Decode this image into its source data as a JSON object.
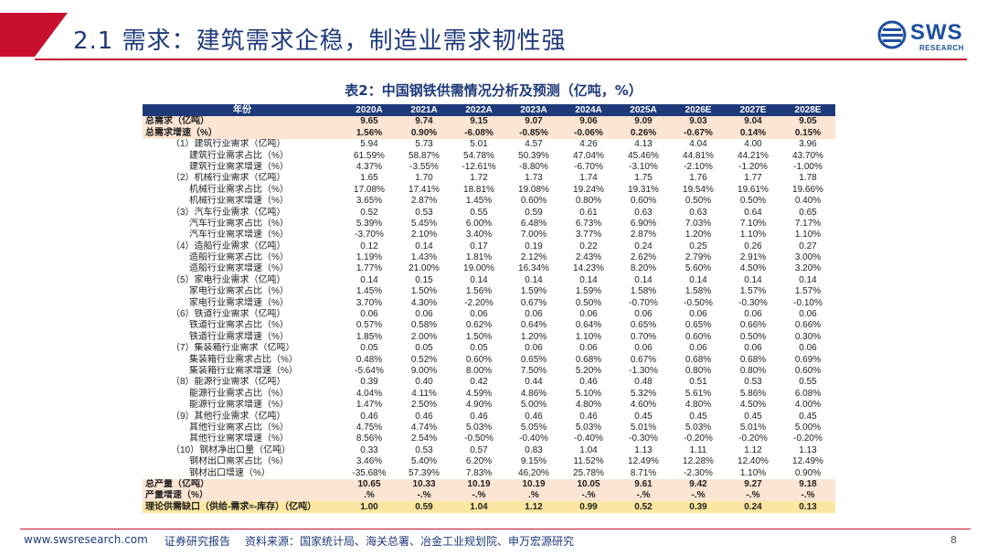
{
  "header": {
    "title": "2.1 需求：建筑需求企稳，制造业需求韧性强",
    "logo_text": "SWS",
    "logo_sub": "RESEARCH"
  },
  "table": {
    "title": "表2：中国钢铁供需情况分析及预测（亿吨，%）",
    "columns": [
      "年份",
      "2020A",
      "2021A",
      "2022A",
      "2023A",
      "2024A",
      "2025A",
      "2026E",
      "2027E",
      "2028E"
    ],
    "rows": [
      {
        "label": "总需求（亿吨）",
        "style": "bold",
        "indent": 0,
        "values": [
          "9.65",
          "9.74",
          "9.15",
          "9.07",
          "9.06",
          "9.09",
          "9.03",
          "9.04",
          "9.05"
        ]
      },
      {
        "label": "总需求增速（%）",
        "style": "bold",
        "indent": 0,
        "values": [
          "1.56%",
          "0.90%",
          "-6.08%",
          "-0.85%",
          "-0.06%",
          "0.26%",
          "-0.67%",
          "0.14%",
          "0.15%"
        ]
      },
      {
        "label": "（1）建筑行业需求（亿吨）",
        "style": "",
        "indent": 1,
        "values": [
          "5.94",
          "5.73",
          "5.01",
          "4.57",
          "4.26",
          "4.13",
          "4.04",
          "4.00",
          "3.96"
        ]
      },
      {
        "label": "建筑行业需求占比（%）",
        "style": "",
        "indent": 2,
        "values": [
          "61.59%",
          "58.87%",
          "54.78%",
          "50.39%",
          "47.04%",
          "45.46%",
          "44.81%",
          "44.21%",
          "43.70%"
        ]
      },
      {
        "label": "建筑行业需求增速（%）",
        "style": "",
        "indent": 2,
        "values": [
          "4.37%",
          "-3.55%",
          "-12.61%",
          "-8.80%",
          "-6.70%",
          "-3.10%",
          "-2.10%",
          "-1.20%",
          "-1.00%"
        ]
      },
      {
        "label": "（2）机械行业需求（亿吨）",
        "style": "",
        "indent": 1,
        "values": [
          "1.65",
          "1.70",
          "1.72",
          "1.73",
          "1.74",
          "1.75",
          "1.76",
          "1.77",
          "1.78"
        ]
      },
      {
        "label": "机械行业需求占比（%）",
        "style": "",
        "indent": 2,
        "values": [
          "17.08%",
          "17.41%",
          "18.81%",
          "19.08%",
          "19.24%",
          "19.31%",
          "19.54%",
          "19.61%",
          "19.66%"
        ]
      },
      {
        "label": "机械行业需求增速（%）",
        "style": "",
        "indent": 2,
        "values": [
          "3.65%",
          "2.87%",
          "1.45%",
          "0.60%",
          "0.80%",
          "0.60%",
          "0.50%",
          "0.50%",
          "0.40%"
        ]
      },
      {
        "label": "（3）汽车行业需求（亿吨）",
        "style": "",
        "indent": 1,
        "values": [
          "0.52",
          "0.53",
          "0.55",
          "0.59",
          "0.61",
          "0.63",
          "0.63",
          "0.64",
          "0.65"
        ]
      },
      {
        "label": "汽车行业需求占比（%）",
        "style": "",
        "indent": 2,
        "values": [
          "5.39%",
          "5.45%",
          "6.00%",
          "6.48%",
          "6.73%",
          "6.90%",
          "7.03%",
          "7.10%",
          "7.17%"
        ]
      },
      {
        "label": "汽车行业需求增速（%）",
        "style": "",
        "indent": 2,
        "values": [
          "-3.70%",
          "2.10%",
          "3.40%",
          "7.00%",
          "3.77%",
          "2.87%",
          "1.20%",
          "1.10%",
          "1.10%"
        ]
      },
      {
        "label": "（4）造船行业需求（亿吨）",
        "style": "",
        "indent": 1,
        "values": [
          "0.12",
          "0.14",
          "0.17",
          "0.19",
          "0.22",
          "0.24",
          "0.25",
          "0.26",
          "0.27"
        ]
      },
      {
        "label": "造船行业需求占比（%）",
        "style": "",
        "indent": 2,
        "values": [
          "1.19%",
          "1.43%",
          "1.81%",
          "2.12%",
          "2.43%",
          "2.62%",
          "2.79%",
          "2.91%",
          "3.00%"
        ]
      },
      {
        "label": "造船行业需求增速（%）",
        "style": "",
        "indent": 2,
        "values": [
          "1.77%",
          "21.00%",
          "19.00%",
          "16.34%",
          "14.23%",
          "8.20%",
          "5.60%",
          "4.50%",
          "3.20%"
        ]
      },
      {
        "label": "（5）家电行业需求（亿吨）",
        "style": "",
        "indent": 1,
        "values": [
          "0.14",
          "0.15",
          "0.14",
          "0.14",
          "0.14",
          "0.14",
          "0.14",
          "0.14",
          "0.14"
        ]
      },
      {
        "label": "家电行业需求占比（%）",
        "style": "",
        "indent": 2,
        "values": [
          "1.45%",
          "1.50%",
          "1.56%",
          "1.59%",
          "1.59%",
          "1.58%",
          "1.58%",
          "1.57%",
          "1.57%"
        ]
      },
      {
        "label": "家电行业需求增速（%）",
        "style": "",
        "indent": 2,
        "values": [
          "3.70%",
          "4.30%",
          "-2.20%",
          "0.67%",
          "0.50%",
          "-0.70%",
          "-0.50%",
          "-0.30%",
          "-0.10%"
        ]
      },
      {
        "label": "（6）铁道行业需求（亿吨）",
        "style": "",
        "indent": 1,
        "values": [
          "0.06",
          "0.06",
          "0.06",
          "0.06",
          "0.06",
          "0.06",
          "0.06",
          "0.06",
          "0.06"
        ]
      },
      {
        "label": "铁道行业需求占比（%）",
        "style": "",
        "indent": 2,
        "values": [
          "0.57%",
          "0.58%",
          "0.62%",
          "0.64%",
          "0.64%",
          "0.65%",
          "0.65%",
          "0.66%",
          "0.66%"
        ]
      },
      {
        "label": "铁道行业需求增速（%）",
        "style": "",
        "indent": 2,
        "values": [
          "1.85%",
          "2.00%",
          "1.50%",
          "1.20%",
          "1.10%",
          "0.70%",
          "0.60%",
          "0.50%",
          "0.30%"
        ]
      },
      {
        "label": "（7）集装箱行业需求（亿吨）",
        "style": "",
        "indent": 1,
        "values": [
          "0.05",
          "0.05",
          "0.05",
          "0.06",
          "0.06",
          "0.06",
          "0.06",
          "0.06",
          "0.06"
        ]
      },
      {
        "label": "集装箱行业需求占比（%）",
        "style": "",
        "indent": 2,
        "values": [
          "0.48%",
          "0.52%",
          "0.60%",
          "0.65%",
          "0.68%",
          "0.67%",
          "0.68%",
          "0.68%",
          "0.69%"
        ]
      },
      {
        "label": "集装箱行业需求增速（%）",
        "style": "",
        "indent": 2,
        "values": [
          "-5.64%",
          "9.00%",
          "8.00%",
          "7.50%",
          "5.20%",
          "-1.30%",
          "0.80%",
          "0.80%",
          "0.60%"
        ]
      },
      {
        "label": "（8）能源行业需求（亿吨）",
        "style": "",
        "indent": 1,
        "values": [
          "0.39",
          "0.40",
          "0.42",
          "0.44",
          "0.46",
          "0.48",
          "0.51",
          "0.53",
          "0.55"
        ]
      },
      {
        "label": "能源行业需求占比（%）",
        "style": "",
        "indent": 2,
        "values": [
          "4.04%",
          "4.11%",
          "4.59%",
          "4.86%",
          "5.10%",
          "5.32%",
          "5.61%",
          "5.86%",
          "6.08%"
        ]
      },
      {
        "label": "能源行业需求增速（%）",
        "style": "",
        "indent": 2,
        "values": [
          "1.47%",
          "2.50%",
          "4.90%",
          "5.00%",
          "4.80%",
          "4.60%",
          "4.80%",
          "4.50%",
          "4.00%"
        ]
      },
      {
        "label": "（9）其他行业需求（亿吨）",
        "style": "",
        "indent": 1,
        "values": [
          "0.46",
          "0.46",
          "0.46",
          "0.46",
          "0.46",
          "0.45",
          "0.45",
          "0.45",
          "0.45"
        ]
      },
      {
        "label": "其他行业需求占比（%）",
        "style": "",
        "indent": 2,
        "values": [
          "4.75%",
          "4.74%",
          "5.03%",
          "5.05%",
          "5.03%",
          "5.01%",
          "5.03%",
          "5.01%",
          "5.00%"
        ]
      },
      {
        "label": "其他行业需求增速（%）",
        "style": "",
        "indent": 2,
        "values": [
          "8.56%",
          "2.54%",
          "-0.50%",
          "-0.40%",
          "-0.40%",
          "-0.30%",
          "-0.20%",
          "-0.20%",
          "-0.20%"
        ]
      },
      {
        "label": "（10）钢材净出口量（亿吨）",
        "style": "",
        "indent": 1,
        "values": [
          "0.33",
          "0.53",
          "0.57",
          "0.83",
          "1.04",
          "1.13",
          "1.11",
          "1.12",
          "1.13"
        ]
      },
      {
        "label": "钢材出口需求占比（%）",
        "style": "",
        "indent": 2,
        "values": [
          "3.46%",
          "5.40%",
          "6.20%",
          "9.15%",
          "11.52%",
          "12.49%",
          "12.28%",
          "12.40%",
          "12.49%"
        ]
      },
      {
        "label": "钢材出口增速（%）",
        "style": "",
        "indent": 2,
        "values": [
          "-35.68%",
          "57.39%",
          "7.83%",
          "46.20%",
          "25.78%",
          "8.71%",
          "-2.30%",
          "1.10%",
          "0.90%"
        ]
      },
      {
        "label": "总产量（亿吨）",
        "style": "bold",
        "indent": 0,
        "values": [
          "10.65",
          "10.33",
          "10.19",
          "10.19",
          "10.05",
          "9.61",
          "9.42",
          "9.27",
          "9.18"
        ]
      },
      {
        "label": "产量增速（%）",
        "style": "bold",
        "indent": 0,
        "values": [
          ".%",
          "-.%",
          "-.%",
          ".%",
          "-.%",
          "-.%",
          "-.%",
          "-.%",
          "-.%"
        ]
      },
      {
        "label": "理论供需缺口（供给-需求≈-库存）（亿吨）",
        "style": "bottom",
        "indent": 0,
        "values": [
          "1.00",
          "0.59",
          "1.04",
          "1.12",
          "0.99",
          "0.52",
          "0.39",
          "0.24",
          "0.13"
        ]
      }
    ]
  },
  "footer": {
    "url": "www.swsresearch.com",
    "report_type": "证券研究报告",
    "source": "资料来源：国家统计局、海关总署、冶金工业规划院、申万宏源研究",
    "page": "8"
  },
  "colors": {
    "accent_red": "#c8102e",
    "navy": "#1f3a7a",
    "bold_row_bg": "#fde5d4",
    "gap_row_bg": "#fbe7a1"
  }
}
